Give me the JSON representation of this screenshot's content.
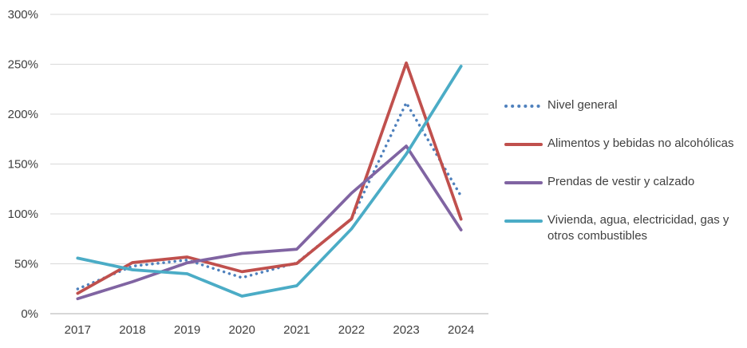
{
  "chart_data": {
    "type": "line",
    "categories": [
      "2017",
      "2018",
      "2019",
      "2020",
      "2021",
      "2022",
      "2023",
      "2024"
    ],
    "series": [
      {
        "id": "nivel-general",
        "name": "Nivel general",
        "color": "#4F81BD",
        "dash": "dotted",
        "values": [
          24.8,
          47.6,
          53.8,
          36.1,
          50.9,
          94.8,
          211.4,
          117.8
        ]
      },
      {
        "id": "alimentos-y-bebidas",
        "name": "Alimentos y bebidas no alcohólicas",
        "color": "#C0504D",
        "dash": "solid",
        "values": [
          20.4,
          51.2,
          56.8,
          42.1,
          50.3,
          95.0,
          251.3,
          94.7
        ]
      },
      {
        "id": "prendas-de-vestir",
        "name": "Prendas de vestir y calzado",
        "color": "#8064A2",
        "dash": "solid",
        "values": [
          15,
          32,
          51,
          60.4,
          64.6,
          120.8,
          168,
          84
        ]
      },
      {
        "id": "vivienda-agua-electricidad",
        "name": "Vivienda, agua, electricidad, gas y otros combustibles",
        "color": "#4BACC6",
        "dash": "solid",
        "values": [
          55.7,
          44,
          40,
          17.6,
          28,
          85,
          160,
          248
        ]
      }
    ],
    "y_ticks": [
      "0%",
      "50%",
      "100%",
      "150%",
      "200%",
      "250%",
      "300%"
    ],
    "ylim": [
      0,
      300
    ],
    "grid": true,
    "legend_position": "right",
    "title": "",
    "xlabel": "",
    "ylabel": ""
  },
  "colors": {
    "gridline": "#D9D9D9",
    "axis_line": "#BFBFBF",
    "label": "#404040",
    "background": "#FFFFFF"
  }
}
